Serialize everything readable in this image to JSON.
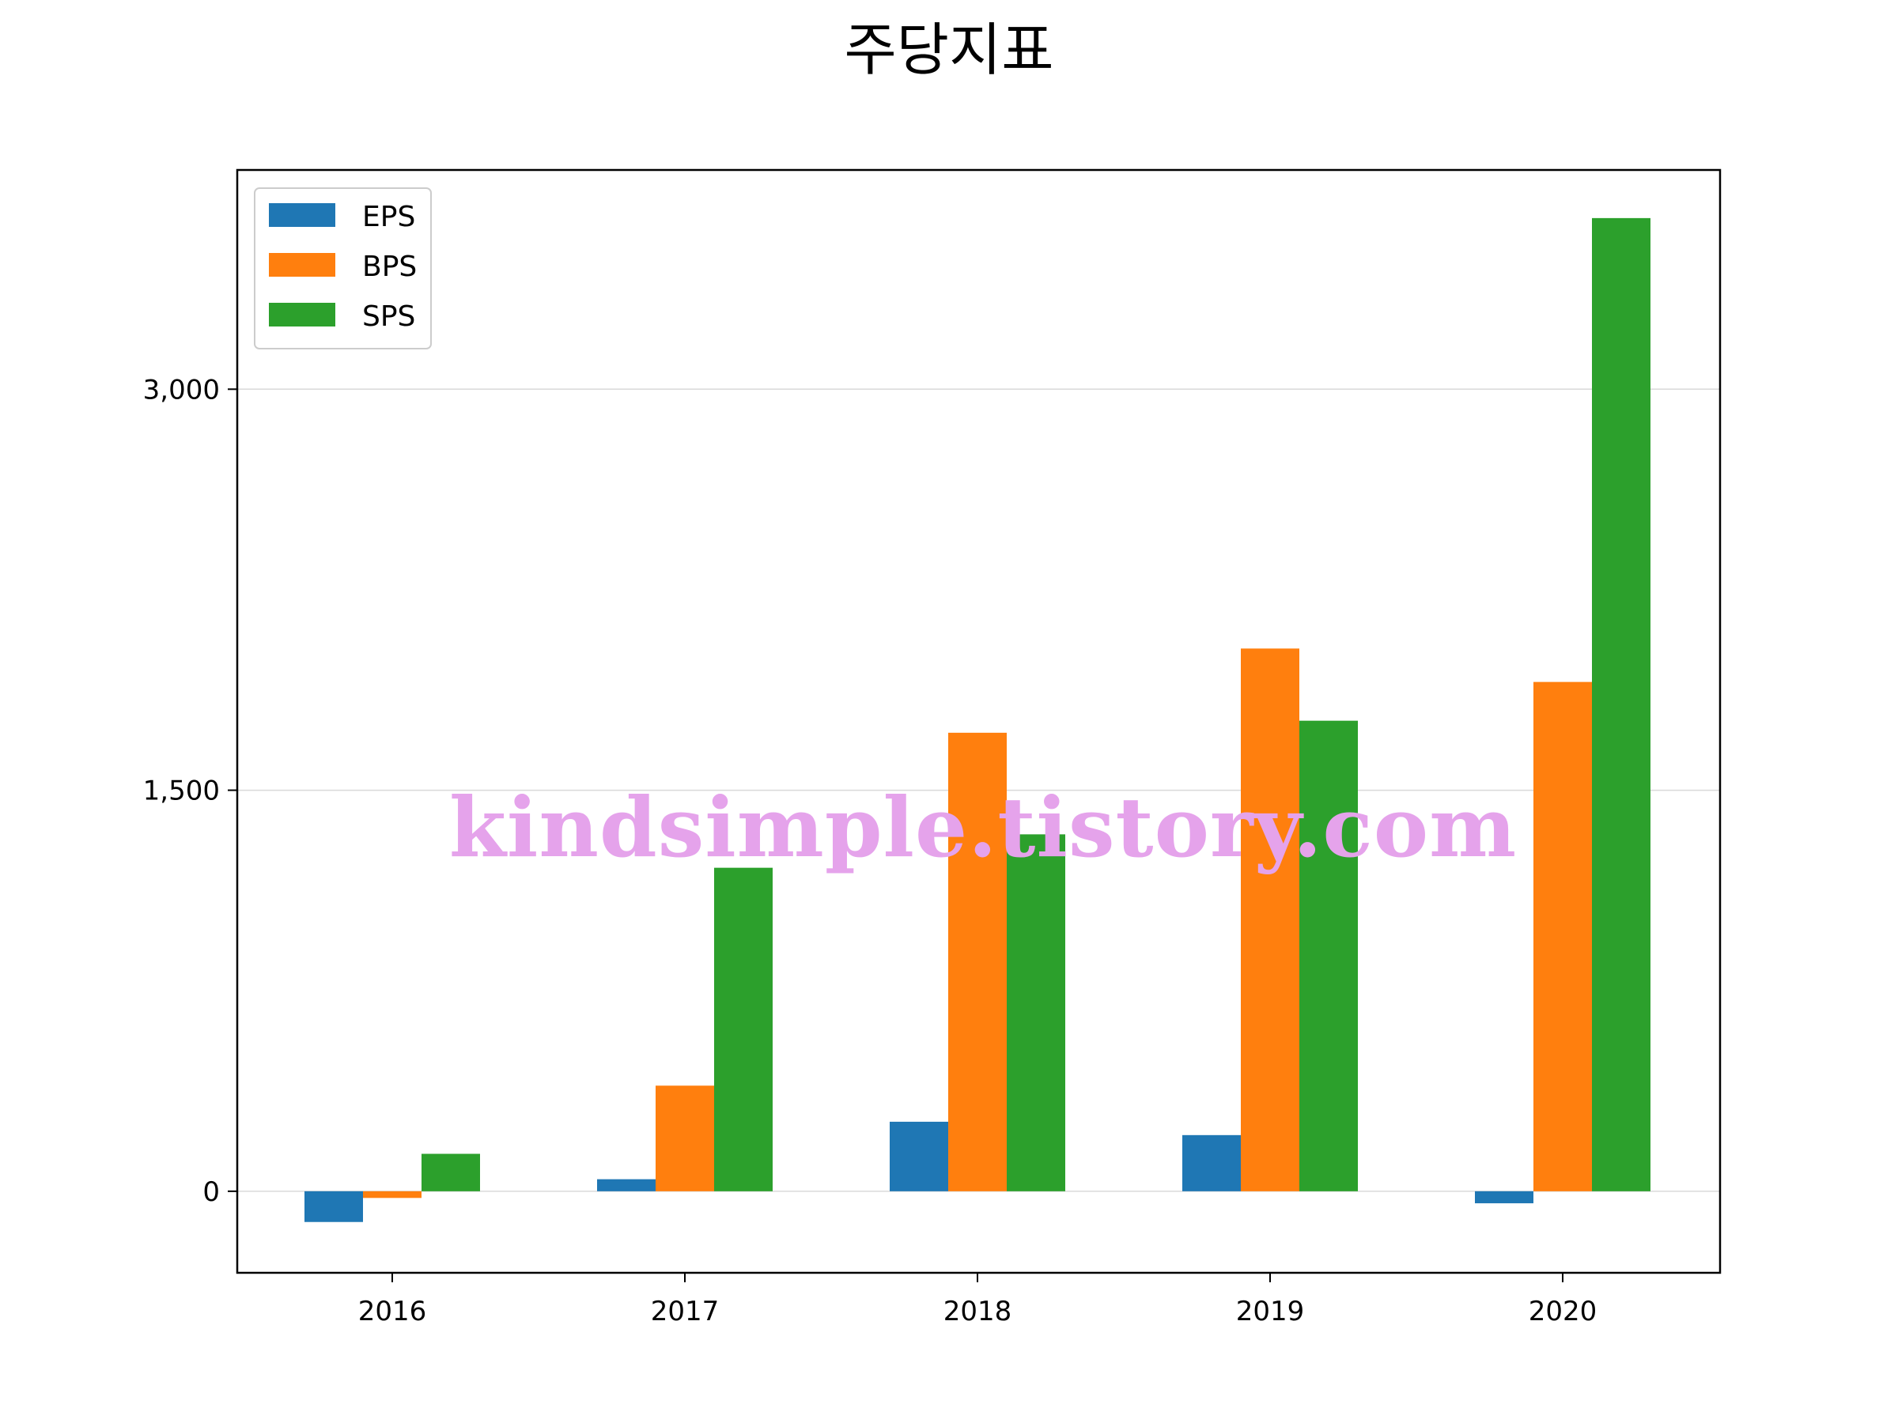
{
  "chart_data": {
    "type": "bar",
    "title": "주당지표",
    "xlabel": "",
    "ylabel": "",
    "categories": [
      "2016",
      "2017",
      "2018",
      "2019",
      "2020"
    ],
    "series": [
      {
        "name": "EPS",
        "color": "#1f77b4",
        "values": [
          -115,
          45,
          260,
          210,
          -45
        ]
      },
      {
        "name": "BPS",
        "color": "#ff7f0e",
        "values": [
          -25,
          395,
          1715,
          2030,
          1905
        ]
      },
      {
        "name": "SPS",
        "color": "#2ca02c",
        "values": [
          140,
          1210,
          1335,
          1760,
          3640
        ]
      }
    ],
    "ylim": [
      -305,
      3820
    ],
    "yticks": [
      0,
      1500,
      3000
    ],
    "ytick_labels": [
      "0",
      "1,500",
      "3,000"
    ],
    "grid": "y",
    "legend": "top-left",
    "watermark": "kindsimple.tistory.com"
  }
}
